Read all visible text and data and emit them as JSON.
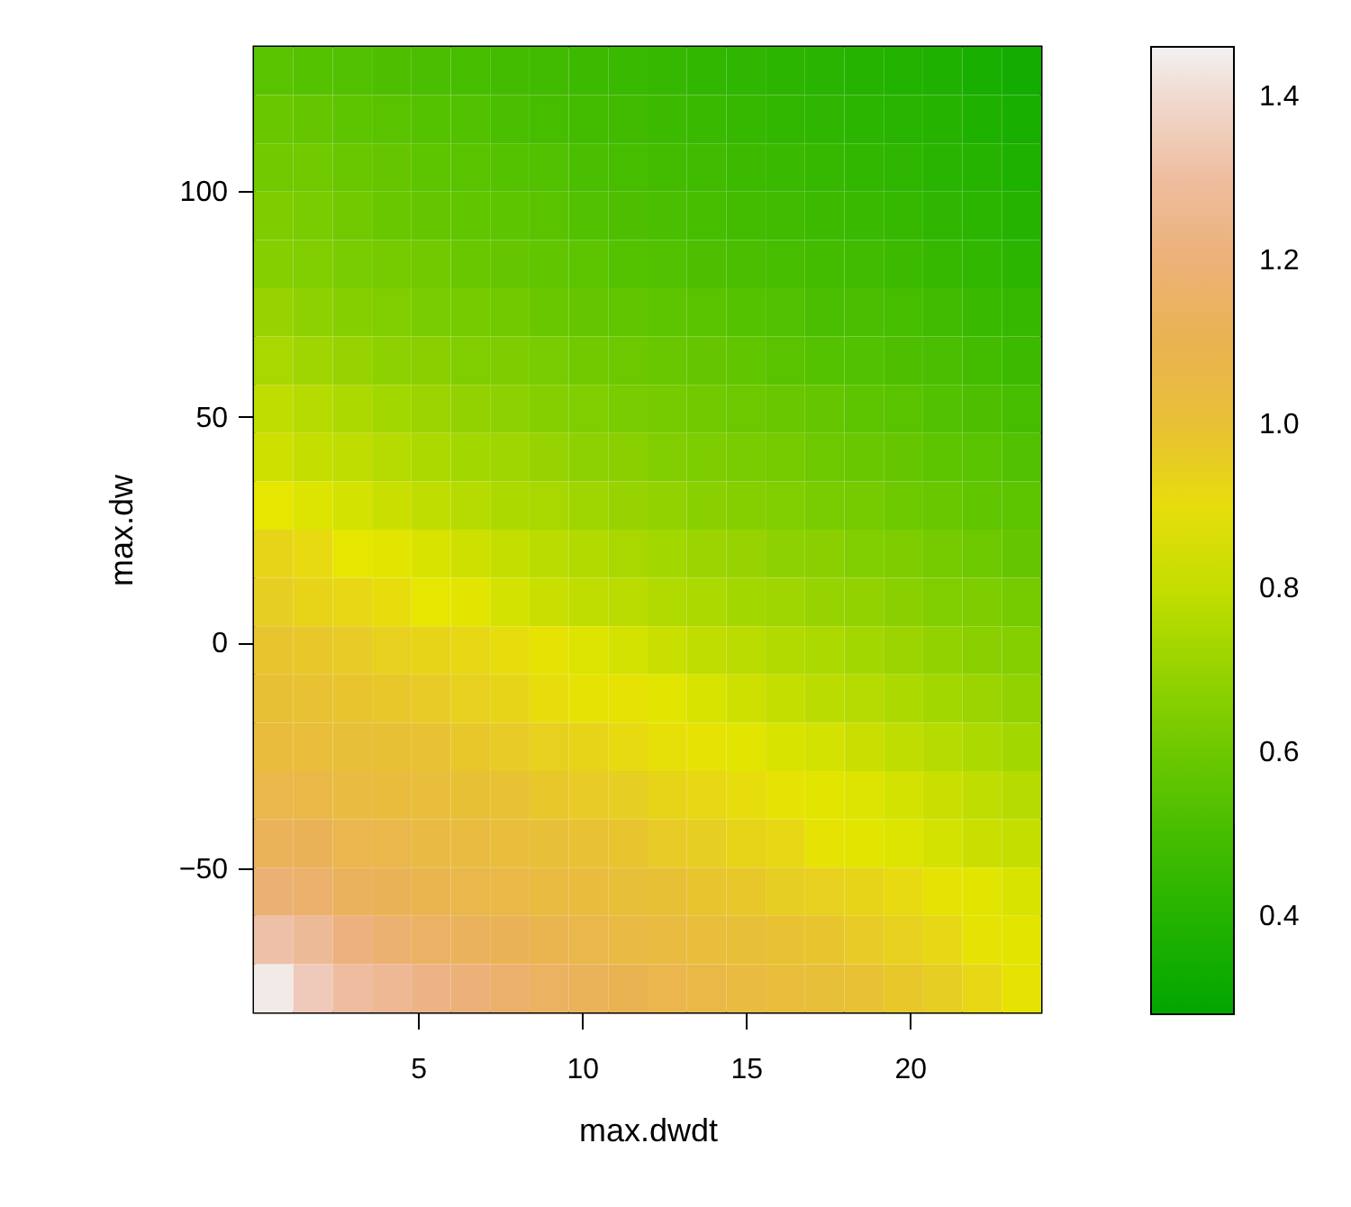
{
  "chart_data": {
    "type": "heatmap",
    "xlabel": "max.dwdt",
    "ylabel": "max.dw",
    "x": [
      0.6,
      1.8,
      3.0,
      4.2,
      5.4,
      6.6,
      7.8,
      9.0,
      10.2,
      11.4,
      12.6,
      13.8,
      15.0,
      16.2,
      17.4,
      18.6,
      19.8,
      21.0,
      22.2,
      23.4
    ],
    "y": [
      126.65,
      115.95,
      105.25,
      94.55,
      83.85,
      73.15,
      62.45,
      51.75,
      41.05,
      30.35,
      19.65,
      8.95,
      -1.75,
      -12.45,
      -23.15,
      -33.85,
      -44.55,
      -55.25,
      -65.95,
      -76.65
    ],
    "xlim": [
      0,
      24
    ],
    "xticks": [
      5,
      10,
      15,
      20
    ],
    "ylim": [
      -82,
      132
    ],
    "yticks": [
      {
        "value": -50,
        "label": "−50"
      },
      0,
      50,
      100
    ],
    "clim": [
      0.28,
      1.46
    ],
    "cticks": [
      0.4,
      0.6,
      0.8,
      {
        "value": 1.0,
        "label": "1.0"
      },
      1.2,
      1.4
    ],
    "colors": [
      "#00a600",
      "#24b300",
      "#4cbf00",
      "#7acc00",
      "#add900",
      "#e6e600",
      "#e8c232",
      "#eab254",
      "#ecb181",
      "#efc3b0",
      "#f2f2f2"
    ],
    "cells": [
      [
        0.55,
        0.54,
        0.53,
        0.52,
        0.51,
        0.5,
        0.49,
        0.48,
        0.47,
        0.46,
        0.45,
        0.44,
        0.43,
        0.42,
        0.41,
        0.4,
        0.39,
        0.38,
        0.36,
        0.34
      ],
      [
        0.59,
        0.58,
        0.56,
        0.55,
        0.54,
        0.53,
        0.51,
        0.5,
        0.49,
        0.48,
        0.47,
        0.46,
        0.45,
        0.44,
        0.43,
        0.42,
        0.41,
        0.4,
        0.38,
        0.36
      ],
      [
        0.61,
        0.61,
        0.59,
        0.58,
        0.56,
        0.55,
        0.54,
        0.53,
        0.51,
        0.5,
        0.49,
        0.48,
        0.47,
        0.46,
        0.45,
        0.44,
        0.43,
        0.41,
        0.4,
        0.38
      ],
      [
        0.64,
        0.63,
        0.61,
        0.59,
        0.58,
        0.57,
        0.56,
        0.55,
        0.53,
        0.52,
        0.51,
        0.5,
        0.49,
        0.48,
        0.47,
        0.46,
        0.45,
        0.43,
        0.42,
        0.4
      ],
      [
        0.66,
        0.65,
        0.63,
        0.62,
        0.61,
        0.59,
        0.58,
        0.57,
        0.56,
        0.54,
        0.53,
        0.52,
        0.51,
        0.5,
        0.49,
        0.48,
        0.47,
        0.45,
        0.44,
        0.42
      ],
      [
        0.7,
        0.68,
        0.66,
        0.65,
        0.63,
        0.62,
        0.61,
        0.59,
        0.58,
        0.57,
        0.56,
        0.55,
        0.54,
        0.53,
        0.51,
        0.51,
        0.5,
        0.48,
        0.46,
        0.45
      ],
      [
        0.74,
        0.72,
        0.7,
        0.68,
        0.67,
        0.65,
        0.64,
        0.63,
        0.61,
        0.6,
        0.59,
        0.58,
        0.57,
        0.55,
        0.54,
        0.53,
        0.52,
        0.51,
        0.49,
        0.47
      ],
      [
        0.79,
        0.77,
        0.75,
        0.73,
        0.71,
        0.69,
        0.68,
        0.66,
        0.65,
        0.63,
        0.62,
        0.61,
        0.6,
        0.59,
        0.58,
        0.56,
        0.55,
        0.53,
        0.52,
        0.5
      ],
      [
        0.82,
        0.8,
        0.79,
        0.77,
        0.75,
        0.73,
        0.72,
        0.7,
        0.68,
        0.67,
        0.65,
        0.64,
        0.63,
        0.62,
        0.6,
        0.59,
        0.58,
        0.56,
        0.55,
        0.53
      ],
      [
        0.87,
        0.85,
        0.83,
        0.81,
        0.79,
        0.77,
        0.75,
        0.74,
        0.72,
        0.7,
        0.69,
        0.67,
        0.66,
        0.65,
        0.63,
        0.62,
        0.6,
        0.59,
        0.57,
        0.56
      ],
      [
        0.93,
        0.91,
        0.87,
        0.86,
        0.84,
        0.82,
        0.8,
        0.78,
        0.76,
        0.74,
        0.73,
        0.71,
        0.7,
        0.68,
        0.67,
        0.65,
        0.64,
        0.62,
        0.6,
        0.58
      ],
      [
        0.95,
        0.93,
        0.92,
        0.9,
        0.87,
        0.86,
        0.83,
        0.81,
        0.79,
        0.78,
        0.76,
        0.75,
        0.73,
        0.72,
        0.7,
        0.69,
        0.67,
        0.65,
        0.64,
        0.62
      ],
      [
        0.98,
        0.97,
        0.96,
        0.94,
        0.93,
        0.92,
        0.9,
        0.88,
        0.85,
        0.83,
        0.81,
        0.79,
        0.78,
        0.76,
        0.75,
        0.73,
        0.71,
        0.69,
        0.67,
        0.66
      ],
      [
        1.0,
        0.99,
        0.98,
        0.97,
        0.96,
        0.94,
        0.93,
        0.9,
        0.88,
        0.88,
        0.86,
        0.84,
        0.82,
        0.8,
        0.78,
        0.77,
        0.75,
        0.73,
        0.71,
        0.69
      ],
      [
        1.03,
        1.02,
        1.01,
        1.0,
        0.99,
        0.97,
        0.96,
        0.94,
        0.93,
        0.91,
        0.89,
        0.88,
        0.86,
        0.84,
        0.83,
        0.81,
        0.79,
        0.77,
        0.75,
        0.73
      ],
      [
        1.07,
        1.06,
        1.04,
        1.03,
        1.02,
        1.0,
        0.99,
        0.97,
        0.96,
        0.95,
        0.93,
        0.92,
        0.9,
        0.88,
        0.86,
        0.85,
        0.83,
        0.81,
        0.79,
        0.77
      ],
      [
        1.12,
        1.11,
        1.08,
        1.07,
        1.05,
        1.04,
        1.02,
        1.01,
        0.99,
        0.98,
        0.96,
        0.95,
        0.93,
        0.92,
        0.88,
        0.86,
        0.85,
        0.83,
        0.81,
        0.8
      ],
      [
        1.19,
        1.17,
        1.13,
        1.11,
        1.09,
        1.07,
        1.06,
        1.04,
        1.03,
        1.01,
        1.0,
        0.98,
        0.97,
        0.95,
        0.94,
        0.93,
        0.91,
        0.88,
        0.86,
        0.84
      ],
      [
        1.32,
        1.28,
        1.22,
        1.18,
        1.15,
        1.13,
        1.11,
        1.09,
        1.07,
        1.05,
        1.04,
        1.02,
        1.01,
        0.99,
        0.98,
        0.96,
        0.94,
        0.92,
        0.88,
        0.86
      ],
      [
        1.44,
        1.36,
        1.3,
        1.27,
        1.24,
        1.2,
        1.17,
        1.14,
        1.12,
        1.1,
        1.08,
        1.06,
        1.04,
        1.02,
        1.01,
        0.99,
        0.97,
        0.95,
        0.92,
        0.88
      ]
    ]
  }
}
